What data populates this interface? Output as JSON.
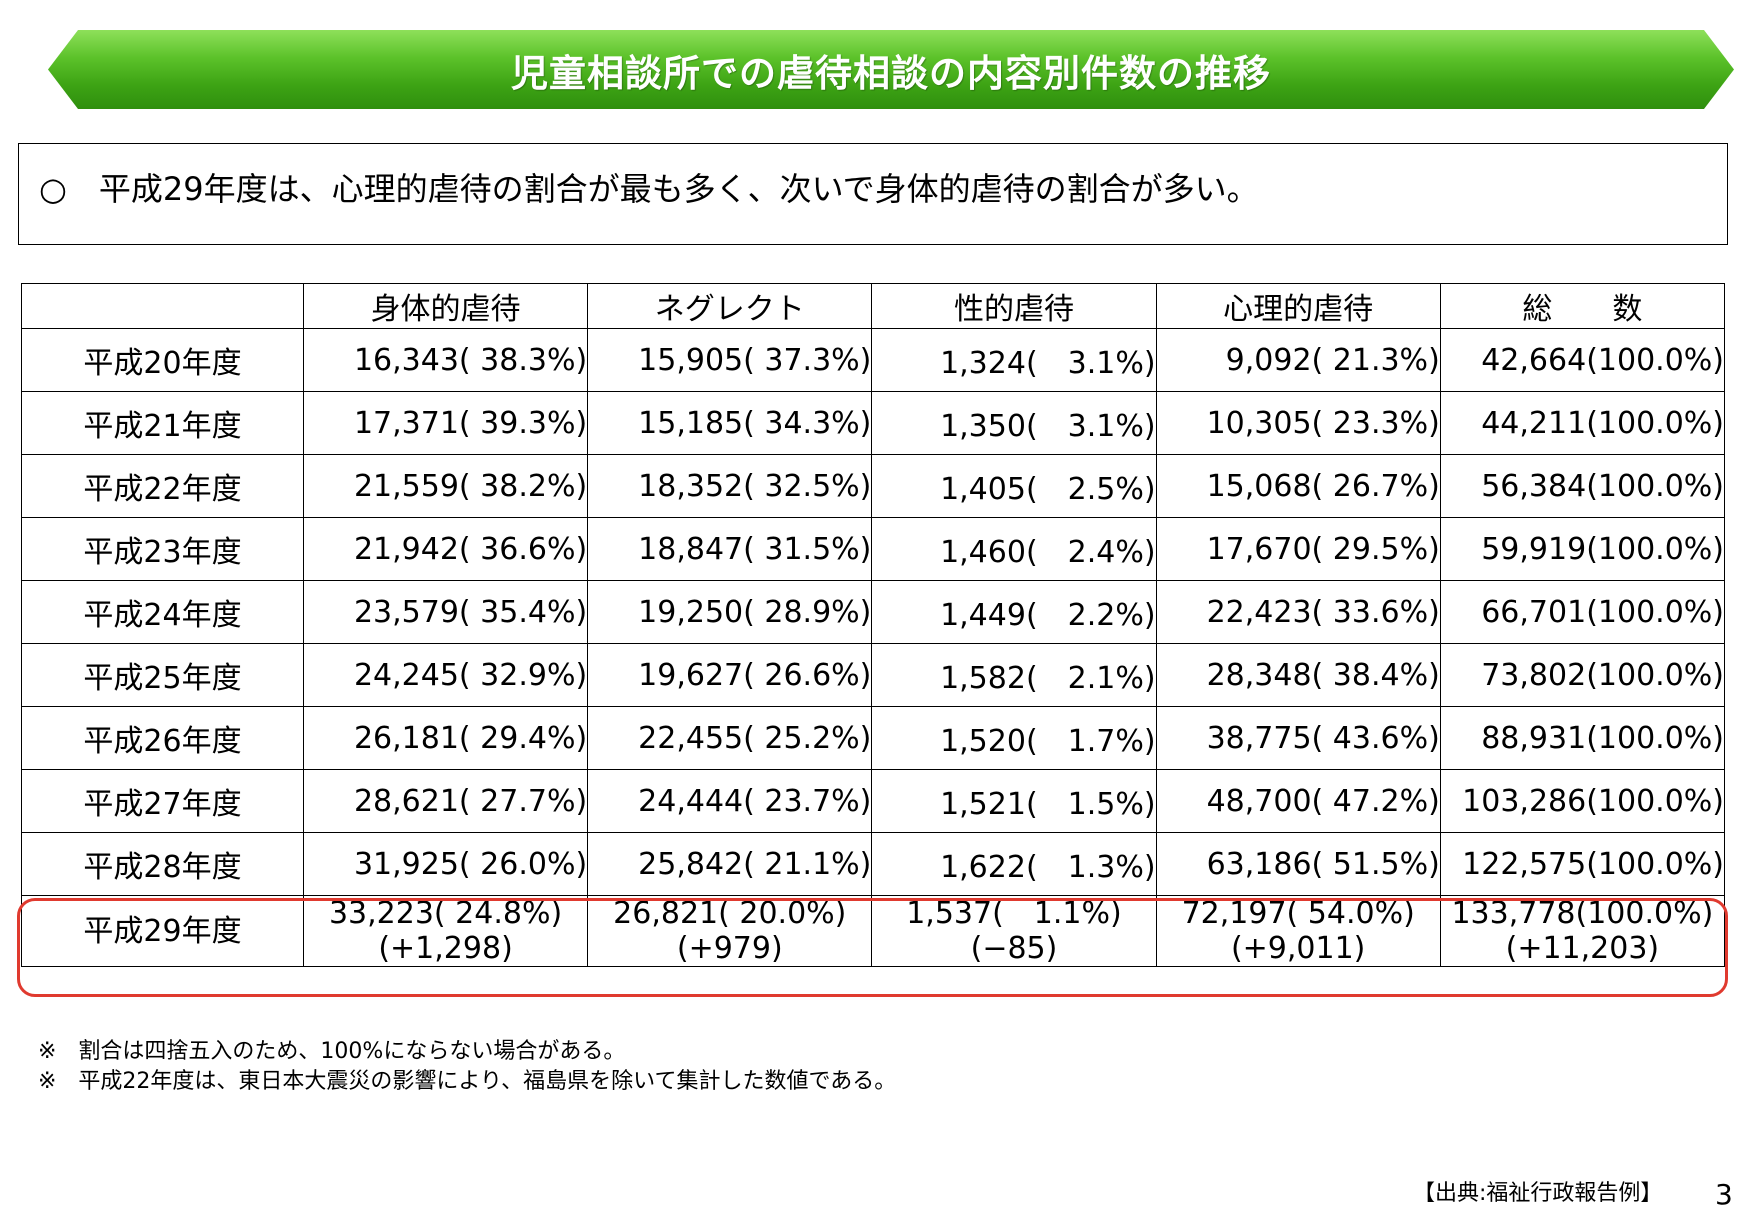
{
  "title": "児童相談所での虐待相談の内容別件数の推移",
  "summary": "○　平成29年度は、心理的虐待の割合が最も多く、次いで身体的虐待の割合が多い。",
  "table": {
    "headers": [
      "",
      "身体的虐待",
      "ネグレクト",
      "性的虐待",
      "心理的虐待",
      "総　　数"
    ],
    "rows": [
      [
        "平成20年度",
        "16,343( 38.3%)",
        "15,905( 37.3%)",
        "1,324(　3.1%)",
        "9,092( 21.3%)",
        "42,664(100.0%)"
      ],
      [
        "平成21年度",
        "17,371( 39.3%)",
        "15,185( 34.3%)",
        "1,350(　3.1%)",
        "10,305( 23.3%)",
        "44,211(100.0%)"
      ],
      [
        "平成22年度",
        "21,559( 38.2%)",
        "18,352( 32.5%)",
        "1,405(　2.5%)",
        "15,068( 26.7%)",
        "56,384(100.0%)"
      ],
      [
        "平成23年度",
        "21,942( 36.6%)",
        "18,847( 31.5%)",
        "1,460(　2.4%)",
        "17,670( 29.5%)",
        "59,919(100.0%)"
      ],
      [
        "平成24年度",
        "23,579( 35.4%)",
        "19,250( 28.9%)",
        "1,449(　2.2%)",
        "22,423( 33.6%)",
        "66,701(100.0%)"
      ],
      [
        "平成25年度",
        "24,245( 32.9%)",
        "19,627( 26.6%)",
        "1,582(　2.1%)",
        "28,348( 38.4%)",
        "73,802(100.0%)"
      ],
      [
        "平成26年度",
        "26,181( 29.4%)",
        "22,455( 25.2%)",
        "1,520(　1.7%)",
        "38,775( 43.6%)",
        "88,931(100.0%)"
      ],
      [
        "平成27年度",
        "28,621( 27.7%)",
        "24,444( 23.7%)",
        "1,521(　1.5%)",
        "48,700( 47.2%)",
        "103,286(100.0%)"
      ],
      [
        "平成28年度",
        "31,925( 26.0%)",
        "25,842( 21.1%)",
        "1,622(　1.3%)",
        "63,186( 51.5%)",
        "122,575(100.0%)"
      ]
    ],
    "highlight_row": {
      "year": "平成29年度",
      "cells": [
        {
          "value": "33,223( 24.8%)",
          "change": "(+1,298)"
        },
        {
          "value": "26,821( 20.0%)",
          "change": "(+979)"
        },
        {
          "value": "1,537(　1.1%)",
          "change": "(−85)"
        },
        {
          "value": "72,197( 54.0%)",
          "change": "(+9,011)"
        },
        {
          "value": "133,778(100.0%)",
          "change": "(+11,203)"
        }
      ]
    }
  },
  "notes": [
    "※　割合は四捨五入のため、100%にならない場合がある。",
    "※　平成22年度は、東日本大震災の影響により、福島県を除いて集計した数値である。"
  ],
  "source": "【出典:福祉行政報告例】",
  "page_number": "3",
  "colors": {
    "banner_green": "#3da314",
    "highlight_red": "#e03a2f"
  }
}
